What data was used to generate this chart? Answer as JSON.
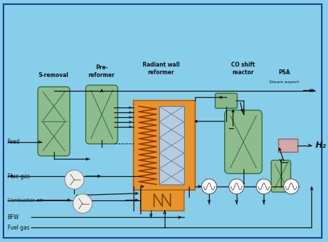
{
  "bg_color": "#87CEEB",
  "border_color": "#1a3a8a",
  "vessel_fill": "#8fbc8f",
  "vessel_edge": "#2d6e2d",
  "vessel_fill2": "#7ab87a",
  "reformer_fill": "#e8942a",
  "reformer_edge": "#b06820",
  "tube_fill": "#b8cce0",
  "tube_edge": "#5577aa",
  "small_hx_fill": "#88b888",
  "small_hx_edge": "#2d6e2d",
  "psa_fill": "#d4a8a8",
  "psa_edge": "#8a6060",
  "circle_fill": "#f0ece8",
  "circle_edge": "#888888",
  "line_color": "#111111",
  "label_color": "#111111",
  "lw": 0.9,
  "figsize": [
    4.74,
    3.49
  ],
  "dpi": 100,
  "labels": {
    "s_removal": "S-removal",
    "pre_reformer": "Pre-\nreformer",
    "radiant_wall": "Radiant wall\nreformer",
    "co_shift": "CO shift\nreactor",
    "psa": "PSA",
    "steam_export": "Steam export",
    "feed": "Feed",
    "flue_gas": "Flue gas",
    "combustion_air": "Combustion air",
    "bfw": "BFW",
    "fuel_gas": "Fuel gas",
    "h2": "H₂"
  }
}
